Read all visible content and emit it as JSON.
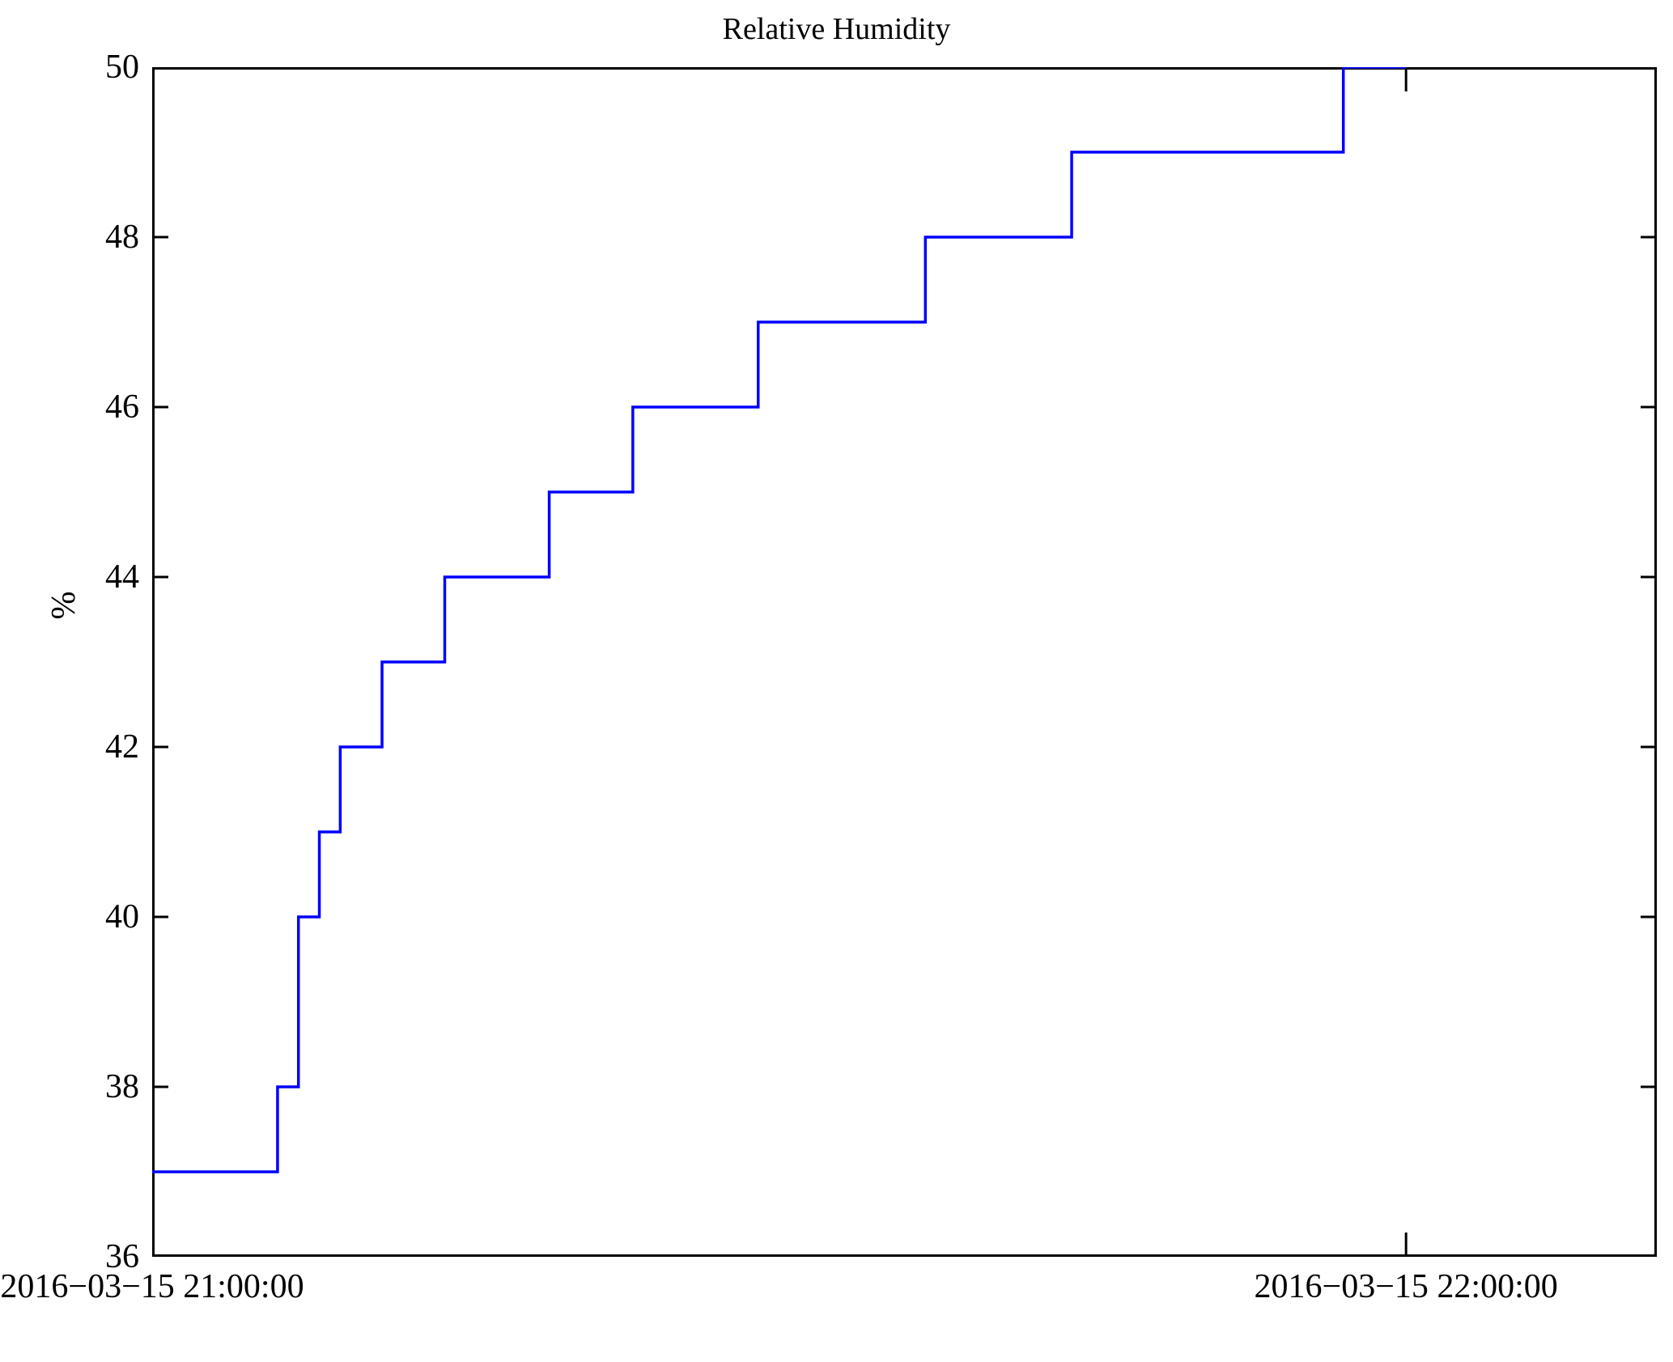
{
  "title": "Relative Humidity",
  "colors": {
    "line": "#0000ff",
    "axis": "#000000",
    "background": "#ffffff"
  },
  "chart_data": {
    "type": "line",
    "style": "steps",
    "grid": false,
    "legend": "none",
    "title": "Relative Humidity",
    "xlabel": "",
    "ylabel": "%",
    "ylim": [
      36,
      50
    ],
    "y_ticks": [
      36,
      38,
      40,
      42,
      44,
      46,
      48,
      50
    ],
    "x_axis": {
      "range_minutes": [
        0,
        72
      ],
      "ticks": [
        {
          "minute": 0,
          "label": "2016−03−15 21:00:00"
        },
        {
          "minute": 60,
          "label": "2016−03−15 22:00:00"
        }
      ]
    },
    "series": [
      {
        "name": "Relative Humidity",
        "unit": "%",
        "color": "#0000ff",
        "points": [
          {
            "time": "2016-03-15 21:00:00",
            "minute": 0,
            "value": 37
          },
          {
            "time": "2016-03-15 21:06:00",
            "minute": 6,
            "value": 38
          },
          {
            "time": "2016-03-15 21:07:00",
            "minute": 7,
            "value": 40
          },
          {
            "time": "2016-03-15 21:08:00",
            "minute": 8,
            "value": 41
          },
          {
            "time": "2016-03-15 21:09:00",
            "minute": 9,
            "value": 42
          },
          {
            "time": "2016-03-15 21:11:00",
            "minute": 11,
            "value": 43
          },
          {
            "time": "2016-03-15 21:14:00",
            "minute": 14,
            "value": 44
          },
          {
            "time": "2016-03-15 21:19:00",
            "minute": 19,
            "value": 45
          },
          {
            "time": "2016-03-15 21:23:00",
            "minute": 23,
            "value": 46
          },
          {
            "time": "2016-03-15 21:29:00",
            "minute": 29,
            "value": 47
          },
          {
            "time": "2016-03-15 21:37:00",
            "minute": 37,
            "value": 48
          },
          {
            "time": "2016-03-15 21:44:00",
            "minute": 44,
            "value": 49
          },
          {
            "time": "2016-03-15 21:57:00",
            "minute": 57,
            "value": 50
          },
          {
            "time": "2016-03-15 22:00:00",
            "minute": 60,
            "value": 50
          }
        ]
      }
    ]
  }
}
